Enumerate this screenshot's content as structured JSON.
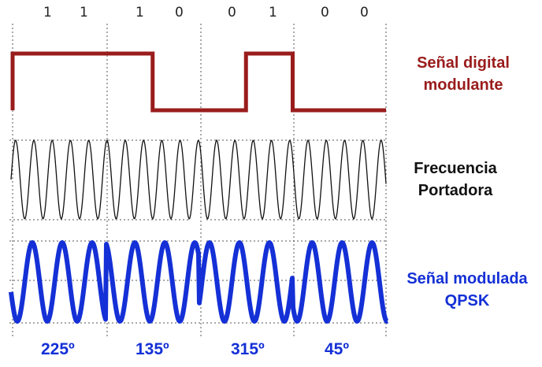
{
  "bits": [
    "1",
    "1",
    "1",
    "0",
    "0",
    "1",
    "0",
    "0"
  ],
  "labels": {
    "digital_line1": "Señal digital",
    "digital_line2": "modulante",
    "carrier_line1": "Frecuencia",
    "carrier_line2": "Portadora",
    "modulated_line1": "Señal modulada",
    "modulated_line2": "QPSK"
  },
  "phases": [
    "225º",
    "135º",
    "315º",
    "45º"
  ],
  "colors": {
    "digital": "#9a1c1c",
    "carrier": "#111111",
    "modulated": "#1430d6",
    "guide": "#555555"
  }
}
